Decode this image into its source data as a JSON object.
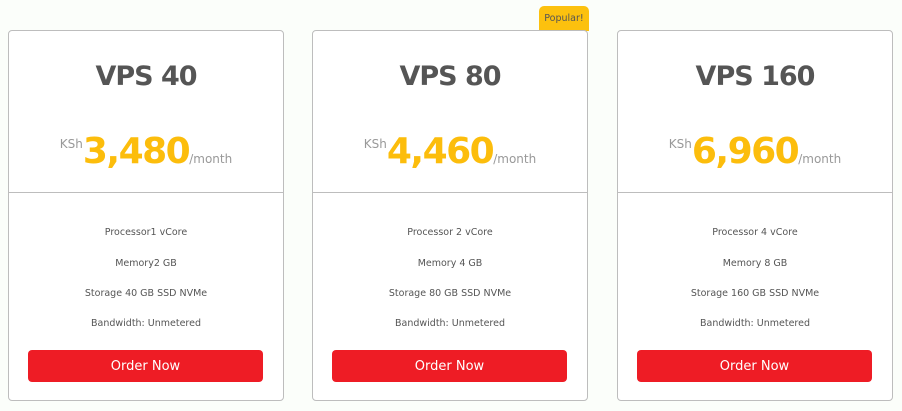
{
  "badge": "Popular!",
  "accent": "#fcbd0c",
  "button_color": "#ee1c25",
  "plans": [
    {
      "name": "VPS 40",
      "currency": "KSh",
      "price": "3,480",
      "period": "/month",
      "features": [
        "Processor1 vCore",
        "Memory2 GB",
        "Storage 40 GB SSD NVMe",
        "Bandwidth: Unmetered"
      ],
      "button": "Order Now"
    },
    {
      "name": "VPS 80",
      "currency": "KSh",
      "price": "4,460",
      "period": "/month",
      "features": [
        "Processor 2 vCore",
        "Memory 4 GB",
        "Storage 80 GB SSD NVMe",
        "Bandwidth: Unmetered"
      ],
      "button": "Order Now"
    },
    {
      "name": "VPS 160",
      "currency": "KSh",
      "price": "6,960",
      "period": "/month",
      "features": [
        "Processor 4 vCore",
        "Memory 8 GB",
        "Storage 160 GB SSD NVMe",
        "Bandwidth: Unmetered"
      ],
      "button": "Order Now"
    }
  ]
}
